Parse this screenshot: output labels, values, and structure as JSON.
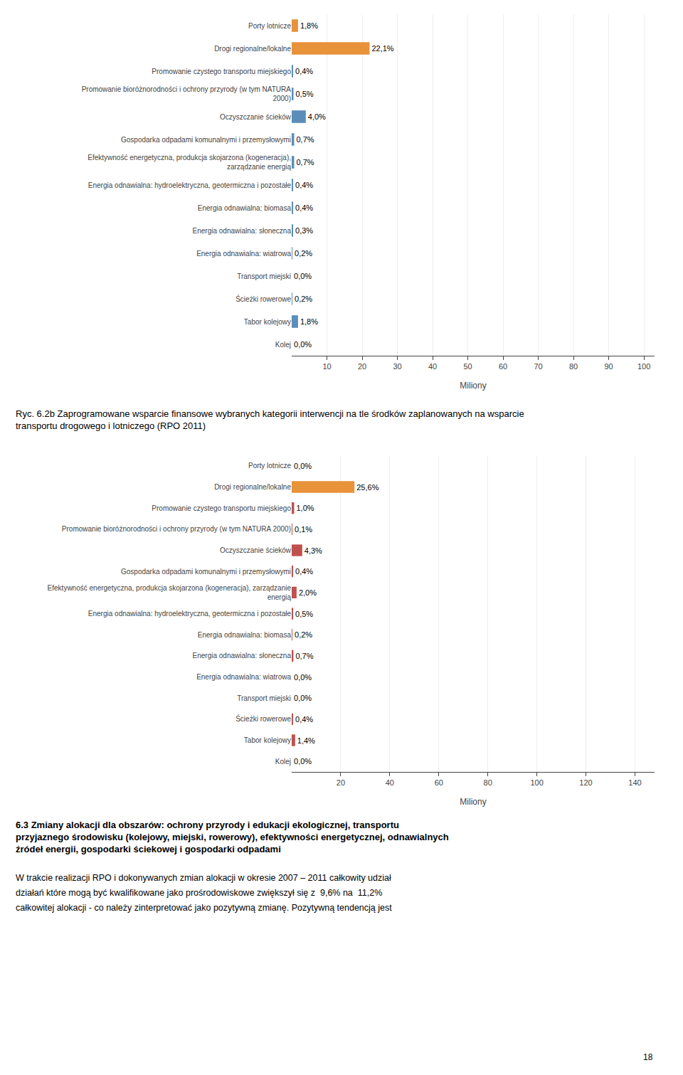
{
  "chart_data": [
    {
      "type": "bar",
      "orientation": "horizontal",
      "categories": [
        "Porty lotnicze",
        "Drogi regionalne/lokalne",
        "Promowanie czystego transportu miejskiego",
        "Promowanie bioróżnorodności i ochrony przyrody (w tym NATURA\n2000)",
        "Oczyszczanie ścieków",
        "Gospodarka odpadami komunalnymi i przemysłowymi",
        "Efektywność energetyczna, produkcja skojarzona (kogeneracja),\nzarządzanie energią",
        "Energia odnawialna: hydroelektryczna, geotermiczna i pozostałe",
        "Energia odnawialna: biomasa",
        "Energia odnawialna: słoneczna",
        "Energia odnawialna: wiatrowa",
        "Transport miejski",
        "Ścieżki rowerowe",
        "Tabor kolejowy",
        "Kolej"
      ],
      "values": [
        1.8,
        22.1,
        0.4,
        0.5,
        4.0,
        0.7,
        0.7,
        0.4,
        0.4,
        0.3,
        0.2,
        0.0,
        0.2,
        1.8,
        0.0
      ],
      "value_labels": [
        "1,8%",
        "22,1%",
        "0,4%",
        "0,5%",
        "4,0%",
        "0,7%",
        "0,7%",
        "0,4%",
        "0,4%",
        "0,3%",
        "0,2%",
        "0,0%",
        "0,2%",
        "1,8%",
        "0,0%"
      ],
      "data_labels": true,
      "colors": [
        "#E8923A",
        "#E8923A",
        "#5B8DB8",
        "#5B8DB8",
        "#5B8DB8",
        "#5B8DB8",
        "#5B8DB8",
        "#5B8DB8",
        "#5B8DB8",
        "#5B8DB8",
        "#5B8DB8",
        "#5B8DB8",
        "#5B8DB8",
        "#5B8DB8",
        "#5B8DB8"
      ],
      "xlim": [
        0,
        103
      ],
      "xticks": [
        10,
        20,
        30,
        40,
        50,
        60,
        70,
        80,
        90,
        100
      ],
      "xlabel": "Miliony",
      "grid": true
    },
    {
      "type": "bar",
      "orientation": "horizontal",
      "title": "Ryc. 6.2b Zaprogramowane wsparcie finansowe wybranych kategorii interwencji na tle środków zaplanowanych na wsparcie transportu drogowego i lotniczego (RPO 2011)",
      "categories": [
        "Porty lotnicze",
        "Drogi regionalne/lokalne",
        "Promowanie czystego transportu miejskiego",
        "Promowanie bioróżnorodności i ochrony przyrody (w tym NATURA 2000)",
        "Oczyszczanie ścieków",
        "Gospodarka odpadami komunalnymi i przemysłowymi",
        "Efektywność energetyczna, produkcja skojarzona (kogeneracja), zarządzanie\nenergią",
        "Energia odnawialna: hydroelektryczna, geotermiczna i pozostałe",
        "Energia odnawialna: biomasa",
        "Energia odnawialna: słoneczna",
        "Energia odnawialna: wiatrowa",
        "Transport miejski",
        "Ścieżki rowerowe",
        "Tabor kolejowy",
        "Kolej"
      ],
      "values": [
        0.0,
        25.6,
        1.0,
        0.1,
        4.3,
        0.4,
        2.0,
        0.5,
        0.2,
        0.7,
        0.0,
        0.0,
        0.4,
        1.4,
        0.0
      ],
      "value_labels": [
        "0,0%",
        "25,6%",
        "1,0%",
        "0,1%",
        "4,3%",
        "0,4%",
        "2,0%",
        "0,5%",
        "0,2%",
        "0,7%",
        "0,0%",
        "0,0%",
        "0,4%",
        "1,4%",
        "0,0%"
      ],
      "data_labels": true,
      "colors": [
        "#C0504D",
        "#E8923A",
        "#C0504D",
        "#C0504D",
        "#C0504D",
        "#C0504D",
        "#C0504D",
        "#C0504D",
        "#C0504D",
        "#C0504D",
        "#C0504D",
        "#C0504D",
        "#C0504D",
        "#C0504D",
        "#C0504D"
      ],
      "xlim": [
        0,
        148
      ],
      "xticks": [
        20,
        40,
        60,
        80,
        100,
        120,
        140
      ],
      "xlabel": "Miliony",
      "grid": true
    }
  ],
  "annotations": [
    "6.3 Zmiany alokacji dla obszarów: ochrony przyrody i edukacji ekologicznej, transportu przyjaznego środowisku (kolejowy, miejski, rowerowy), efektywności energetycznej, odnawialnych źródeł energii, gospodarki ściekowej i gospodarki odpadami",
    "W trakcie realizacji RPO i dokonywanych zmian alokacji w okresie 2007 – 2011 całkowity udział",
    "działań które mogą być kwalifikowane jako prośrodowiskowe zwiększył się z  9,6% na  11,2%",
    "całkowitej alokacji - co należy zinterpretować jako pozytywną zmianę. Pozytywną tendencją jest",
    "18"
  ]
}
